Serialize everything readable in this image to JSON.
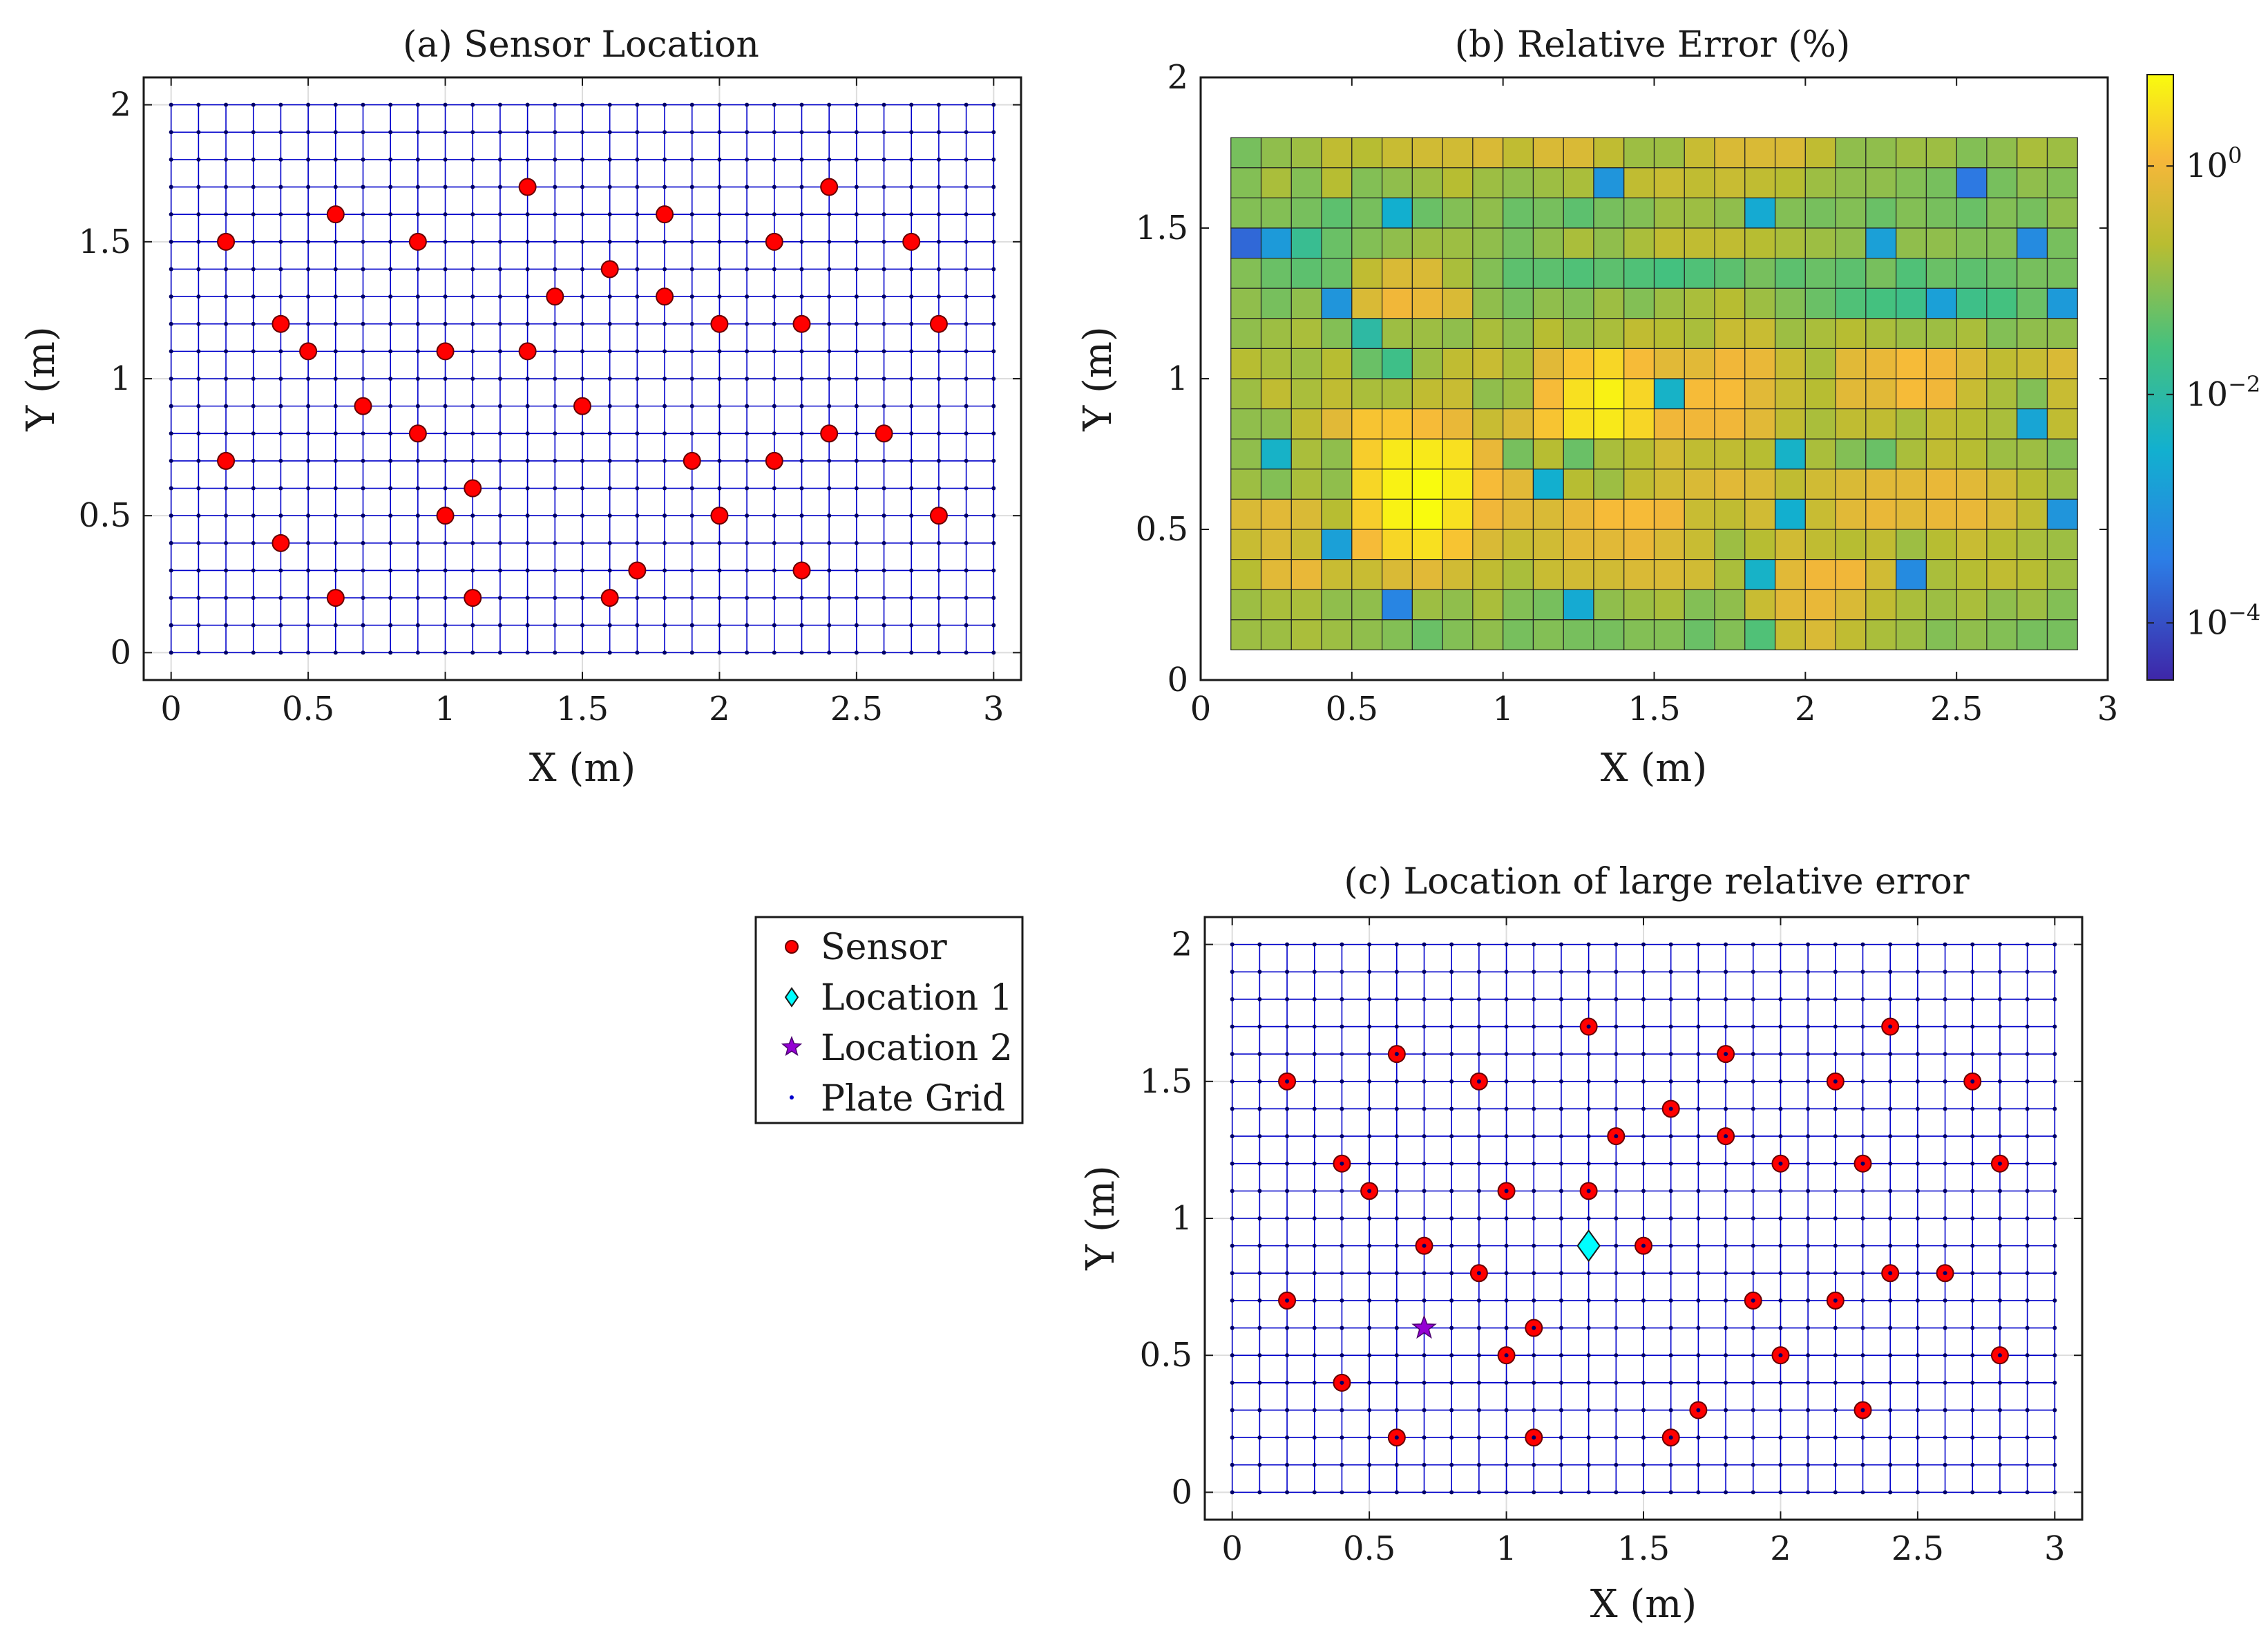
{
  "colors": {
    "grid_line": "#0000cc",
    "sensor_fill": "#ff0000",
    "location1_fill": "#00ffff",
    "location2_fill": "#9400d3",
    "axis": "#1a1a1a"
  },
  "chart_data": [
    {
      "id": "a",
      "type": "scatter",
      "title": "(a) Sensor Location",
      "xlabel": "X (m)",
      "ylabel": "Y (m)",
      "xlim": [
        -0.1,
        3.1
      ],
      "ylim": [
        -0.1,
        2.1
      ],
      "xticks": [
        0,
        0.5,
        1,
        1.5,
        2,
        2.5,
        3
      ],
      "yticks": [
        0,
        0.5,
        1,
        1.5,
        2
      ],
      "xtick_labels": [
        "0",
        "0.5",
        "1",
        "1.5",
        "2",
        "2.5",
        "3"
      ],
      "ytick_labels": [
        "0",
        "0.5",
        "1",
        "1.5",
        "2"
      ],
      "grid": true,
      "plate_grid": {
        "x_start": 0,
        "x_end": 3,
        "x_step": 0.1,
        "y_start": 0,
        "y_end": 2,
        "y_step": 0.1
      },
      "series": [
        {
          "name": "Sensor",
          "marker": "circle",
          "color": "#ff0000",
          "points": [
            [
              0.2,
              1.5
            ],
            [
              0.2,
              0.7
            ],
            [
              0.4,
              1.2
            ],
            [
              0.4,
              0.4
            ],
            [
              0.5,
              1.1
            ],
            [
              0.6,
              1.6
            ],
            [
              0.6,
              0.2
            ],
            [
              0.7,
              0.9
            ],
            [
              0.9,
              1.5
            ],
            [
              0.9,
              0.8
            ],
            [
              1.0,
              1.1
            ],
            [
              1.0,
              0.5
            ],
            [
              1.1,
              0.6
            ],
            [
              1.1,
              0.2
            ],
            [
              1.3,
              1.7
            ],
            [
              1.3,
              1.1
            ],
            [
              1.4,
              1.3
            ],
            [
              1.5,
              0.9
            ],
            [
              1.6,
              1.4
            ],
            [
              1.6,
              0.2
            ],
            [
              1.7,
              0.3
            ],
            [
              1.8,
              1.6
            ],
            [
              1.8,
              1.3
            ],
            [
              1.9,
              0.7
            ],
            [
              2.0,
              1.2
            ],
            [
              2.0,
              0.5
            ],
            [
              2.2,
              1.5
            ],
            [
              2.2,
              0.7
            ],
            [
              2.3,
              1.2
            ],
            [
              2.3,
              0.3
            ],
            [
              2.4,
              1.7
            ],
            [
              2.4,
              0.8
            ],
            [
              2.6,
              0.8
            ],
            [
              2.7,
              1.5
            ],
            [
              2.8,
              1.2
            ],
            [
              2.8,
              0.5
            ]
          ]
        }
      ]
    },
    {
      "id": "b",
      "type": "heatmap",
      "title": "(b) Relative Error (%)",
      "xlabel": "X (m)",
      "ylabel": "Y (m)",
      "xlim": [
        0,
        3
      ],
      "ylim": [
        0,
        2
      ],
      "xticks": [
        0,
        0.5,
        1,
        1.5,
        2,
        2.5,
        3
      ],
      "yticks": [
        0,
        0.5,
        1,
        1.5,
        2
      ],
      "xtick_labels": [
        "0",
        "0.5",
        "1",
        "1.5",
        "2",
        "2.5",
        "3"
      ],
      "ytick_labels": [
        "0",
        "0.5",
        "1",
        "1.5",
        "2"
      ],
      "cell_x_start": 0.1,
      "cell_y_start": 0.1,
      "cell_size": 0.1,
      "color_scale": "log",
      "color_range_log10": [
        -4.5,
        0.8
      ],
      "colorbar_ticks": [
        {
          "log10": 0,
          "label": "10",
          "exp": "0"
        },
        {
          "log10": -2,
          "label": "10",
          "exp": "−2"
        },
        {
          "log10": -4,
          "label": "10",
          "exp": "−4"
        }
      ],
      "values_log10_rows_top_to_bottom": [
        [
          -1.2,
          -1.0,
          -0.9,
          -0.6,
          -0.7,
          -0.5,
          -0.4,
          -0.4,
          -0.3,
          -0.6,
          -0.3,
          -0.3,
          -0.6,
          -0.9,
          -0.9,
          -0.5,
          -0.3,
          -0.3,
          -0.3,
          -0.6,
          -1.0,
          -1.0,
          -0.9,
          -0.9,
          -1.1,
          -1.0,
          -0.8,
          -0.9
        ],
        [
          -1.1,
          -0.8,
          -1.1,
          -0.7,
          -1.1,
          -1.0,
          -0.9,
          -0.7,
          -0.9,
          -1.0,
          -0.9,
          -0.8,
          -3.0,
          -0.6,
          -0.5,
          -0.6,
          -0.5,
          -0.6,
          -0.7,
          -0.9,
          -1.0,
          -1.0,
          -1.1,
          -1.2,
          -3.5,
          -1.2,
          -1.0,
          -1.1
        ],
        [
          -1.1,
          -1.1,
          -1.2,
          -1.4,
          -1.2,
          -2.5,
          -1.3,
          -1.1,
          -1.0,
          -1.3,
          -1.2,
          -1.4,
          -1.2,
          -1.1,
          -0.9,
          -0.9,
          -1.0,
          -2.6,
          -1.1,
          -1.2,
          -1.1,
          -1.3,
          -1.1,
          -1.2,
          -1.3,
          -1.1,
          -1.2,
          -1.0
        ],
        [
          -3.7,
          -2.9,
          -1.8,
          -1.3,
          -1.1,
          -1.0,
          -0.9,
          -0.9,
          -1.0,
          -1.2,
          -1.0,
          -0.8,
          -1.0,
          -0.8,
          -0.6,
          -0.6,
          -0.6,
          -0.7,
          -0.8,
          -0.9,
          -1.0,
          -2.8,
          -1.0,
          -1.0,
          -1.1,
          -1.1,
          -3.2,
          -1.2
        ],
        [
          -1.1,
          -1.3,
          -1.4,
          -1.3,
          -0.6,
          -0.3,
          -0.3,
          -0.8,
          -1.1,
          -1.4,
          -1.4,
          -1.5,
          -1.4,
          -1.5,
          -1.6,
          -1.5,
          -1.4,
          -1.2,
          -1.4,
          -1.3,
          -1.4,
          -1.2,
          -1.5,
          -1.3,
          -1.4,
          -1.3,
          -1.2,
          -1.2
        ],
        [
          -1.0,
          -1.2,
          -1.0,
          -3.0,
          -0.3,
          0.0,
          -0.1,
          -0.3,
          -1.0,
          -1.2,
          -1.0,
          -1.1,
          -0.9,
          -1.1,
          -0.9,
          -0.8,
          -0.7,
          -0.9,
          -1.1,
          -1.3,
          -1.5,
          -1.6,
          -1.7,
          -2.8,
          -1.7,
          -1.6,
          -1.3,
          -2.9
        ],
        [
          -1.0,
          -0.9,
          -0.8,
          -1.1,
          -2.0,
          -0.9,
          -0.9,
          -1.0,
          -0.8,
          -1.0,
          -0.7,
          -0.9,
          -0.8,
          -0.6,
          -0.7,
          -0.8,
          -0.5,
          -0.5,
          -0.9,
          -0.8,
          -0.7,
          -0.8,
          -0.9,
          -0.9,
          -0.8,
          -1.1,
          -1.0,
          -1.0
        ],
        [
          -0.7,
          -0.8,
          -0.9,
          -0.7,
          -1.3,
          -1.7,
          -0.9,
          -0.6,
          -0.5,
          -0.8,
          -0.2,
          0.2,
          0.4,
          0.1,
          -0.2,
          -0.2,
          0.0,
          -0.1,
          -0.5,
          -0.8,
          -0.2,
          -0.1,
          0.1,
          0.0,
          -0.3,
          -0.6,
          -0.5,
          -0.3
        ],
        [
          -0.9,
          -0.6,
          -0.8,
          -0.6,
          -0.8,
          -0.8,
          -0.6,
          -0.5,
          -1.0,
          -0.9,
          0.1,
          0.5,
          0.7,
          0.4,
          -2.4,
          0.1,
          0.1,
          -0.2,
          -0.5,
          -0.7,
          -0.2,
          -0.2,
          0.1,
          0.0,
          -0.5,
          -0.8,
          -1.1,
          -0.5
        ],
        [
          -1.0,
          -1.0,
          -0.6,
          -0.2,
          0.2,
          0.2,
          0.1,
          -0.1,
          -0.5,
          -0.3,
          0.2,
          0.5,
          0.6,
          0.4,
          0.0,
          0.0,
          0.0,
          -0.2,
          -0.6,
          -0.8,
          -0.6,
          -0.6,
          -0.8,
          -0.6,
          -0.7,
          -0.8,
          -2.7,
          -0.6
        ],
        [
          -1.0,
          -2.4,
          -0.8,
          -1.0,
          0.3,
          0.6,
          0.6,
          0.5,
          -0.1,
          -1.2,
          -0.7,
          -1.3,
          -0.8,
          -0.7,
          -0.4,
          -0.6,
          -0.6,
          -0.7,
          -2.4,
          -0.8,
          -1.1,
          -1.3,
          -0.8,
          -0.6,
          -0.7,
          -0.9,
          -0.9,
          -1.1
        ],
        [
          -0.9,
          -1.1,
          -0.8,
          -1.0,
          0.4,
          0.7,
          0.8,
          0.6,
          0.1,
          -0.2,
          -2.5,
          -0.7,
          -0.9,
          -0.6,
          -0.4,
          -0.3,
          -0.2,
          -0.3,
          -0.6,
          -0.4,
          -0.3,
          -0.2,
          -0.2,
          -0.1,
          -0.2,
          -0.4,
          -0.7,
          -0.9
        ],
        [
          -0.3,
          -0.2,
          -0.3,
          -0.7,
          0.3,
          0.7,
          0.8,
          0.5,
          0.0,
          -0.2,
          -0.3,
          -0.1,
          0.1,
          0.1,
          0.0,
          -0.5,
          -0.6,
          -0.4,
          -2.5,
          -0.5,
          -0.2,
          -0.1,
          -0.2,
          -0.1,
          -0.1,
          -0.3,
          -0.6,
          -3.0
        ],
        [
          -0.5,
          -0.3,
          -0.5,
          -2.8,
          0.1,
          0.4,
          0.5,
          0.2,
          -0.3,
          -0.5,
          -0.4,
          -0.2,
          -0.2,
          -0.1,
          -0.3,
          -0.5,
          -0.9,
          -0.7,
          -0.4,
          -0.6,
          -0.7,
          -0.6,
          -0.9,
          -0.7,
          -0.5,
          -0.7,
          -0.8,
          -0.9
        ],
        [
          -0.7,
          -0.2,
          -0.1,
          -0.5,
          -0.5,
          -0.3,
          -0.2,
          -0.4,
          -0.6,
          -0.8,
          -0.5,
          -0.4,
          -0.4,
          -0.3,
          -0.3,
          -0.4,
          -0.8,
          -2.4,
          -0.2,
          0.0,
          0.0,
          -0.4,
          -3.2,
          -0.8,
          -0.7,
          -0.6,
          -0.7,
          -0.9
        ],
        [
          -0.9,
          -0.8,
          -0.8,
          -1.0,
          -1.0,
          -3.3,
          -0.9,
          -1.0,
          -0.8,
          -1.1,
          -1.2,
          -2.6,
          -1.0,
          -0.9,
          -0.8,
          -1.1,
          -1.0,
          -0.5,
          -0.2,
          -0.1,
          -0.3,
          -0.6,
          -0.8,
          -0.9,
          -0.8,
          -1.0,
          -0.9,
          -1.1
        ],
        [
          -0.9,
          -0.9,
          -0.8,
          -0.9,
          -1.0,
          -1.1,
          -1.3,
          -1.1,
          -1.0,
          -1.2,
          -1.1,
          -1.2,
          -1.2,
          -1.1,
          -1.1,
          -1.3,
          -1.1,
          -1.5,
          -0.5,
          -0.3,
          -0.6,
          -0.8,
          -0.9,
          -1.1,
          -1.0,
          -1.1,
          -1.2,
          -1.2
        ]
      ]
    },
    {
      "id": "c",
      "type": "scatter",
      "title": "(c) Location of large relative error",
      "xlabel": "X (m)",
      "ylabel": "Y (m)",
      "xlim": [
        -0.1,
        3.1
      ],
      "ylim": [
        -0.1,
        2.1
      ],
      "xticks": [
        0,
        0.5,
        1,
        1.5,
        2,
        2.5,
        3
      ],
      "yticks": [
        0,
        0.5,
        1,
        1.5,
        2
      ],
      "xtick_labels": [
        "0",
        "0.5",
        "1",
        "1.5",
        "2",
        "2.5",
        "3"
      ],
      "ytick_labels": [
        "0",
        "0.5",
        "1",
        "1.5",
        "2"
      ],
      "grid": true,
      "plate_grid": {
        "x_start": 0,
        "x_end": 3,
        "x_step": 0.1,
        "y_start": 0,
        "y_end": 2,
        "y_step": 0.1
      },
      "series": [
        {
          "name": "Sensor",
          "marker": "circle",
          "color": "#ff0000",
          "points": [
            [
              0.2,
              1.5
            ],
            [
              0.2,
              0.7
            ],
            [
              0.4,
              1.2
            ],
            [
              0.4,
              0.4
            ],
            [
              0.5,
              1.1
            ],
            [
              0.6,
              1.6
            ],
            [
              0.6,
              0.2
            ],
            [
              0.7,
              0.9
            ],
            [
              0.9,
              1.5
            ],
            [
              0.9,
              0.8
            ],
            [
              1.0,
              1.1
            ],
            [
              1.0,
              0.5
            ],
            [
              1.1,
              0.6
            ],
            [
              1.1,
              0.2
            ],
            [
              1.3,
              1.7
            ],
            [
              1.3,
              1.1
            ],
            [
              1.4,
              1.3
            ],
            [
              1.5,
              0.9
            ],
            [
              1.6,
              1.4
            ],
            [
              1.6,
              0.2
            ],
            [
              1.7,
              0.3
            ],
            [
              1.8,
              1.6
            ],
            [
              1.8,
              1.3
            ],
            [
              1.9,
              0.7
            ],
            [
              2.0,
              1.2
            ],
            [
              2.0,
              0.5
            ],
            [
              2.2,
              1.5
            ],
            [
              2.2,
              0.7
            ],
            [
              2.3,
              1.2
            ],
            [
              2.3,
              0.3
            ],
            [
              2.4,
              1.7
            ],
            [
              2.4,
              0.8
            ],
            [
              2.6,
              0.8
            ],
            [
              2.7,
              1.5
            ],
            [
              2.8,
              1.2
            ],
            [
              2.8,
              0.5
            ]
          ]
        },
        {
          "name": "Location 1",
          "marker": "diamond",
          "color": "#00ffff",
          "points": [
            [
              1.3,
              0.9
            ]
          ]
        },
        {
          "name": "Location 2",
          "marker": "star",
          "color": "#9400d3",
          "points": [
            [
              0.7,
              0.6
            ]
          ]
        },
        {
          "name": "Plate Grid",
          "marker": "dot",
          "color": "#0000cc",
          "points": []
        }
      ]
    }
  ],
  "legend": {
    "position": "left of panel (c)",
    "entries": [
      "Sensor",
      "Location 1",
      "Location 2",
      "Plate Grid"
    ]
  }
}
